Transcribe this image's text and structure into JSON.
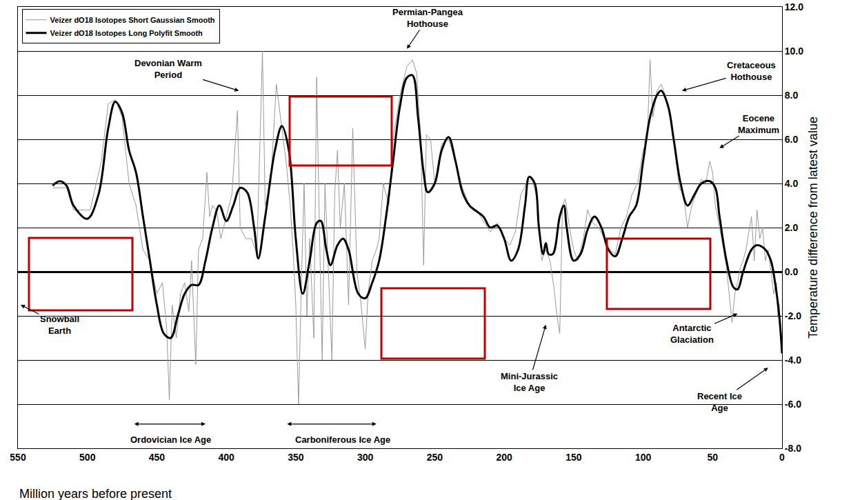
{
  "chart_data": {
    "type": "line",
    "xlabel": "Million years before present",
    "ylabel": "Temperature difference from latest value",
    "xlim": [
      550,
      0
    ],
    "xticks": [
      550,
      500,
      450,
      400,
      350,
      300,
      250,
      200,
      150,
      100,
      50,
      0
    ],
    "ylim": [
      -8,
      12
    ],
    "yticks": [
      {
        "value": -8,
        "label": "-8.0"
      },
      {
        "value": -6,
        "label": "-6.0"
      },
      {
        "value": -4,
        "label": "-4.0"
      },
      {
        "value": -2,
        "label": "-2.0"
      },
      {
        "value": 0,
        "label": "0.0"
      },
      {
        "value": 2,
        "label": "2.0"
      },
      {
        "value": 4,
        "label": "4.0"
      },
      {
        "value": 6,
        "label": "6.0"
      },
      {
        "value": 8,
        "label": "8.0"
      },
      {
        "value": 10,
        "label": "10.0"
      },
      {
        "value": 12,
        "label": "12.0"
      }
    ],
    "grid": true,
    "legend": "upper left",
    "series": [
      {
        "name": "Veizer dO18 Isotopes Short Gaussian Smooth",
        "color": "#999999",
        "line_style": "solid",
        "x": [
          525,
          515,
          510,
          498,
          490,
          485,
          480,
          475,
          470,
          465,
          460,
          455,
          450,
          446,
          443,
          441,
          439,
          436,
          433,
          430,
          427,
          425,
          422,
          420,
          417,
          414,
          412,
          410,
          407,
          404,
          400,
          396,
          392,
          390,
          386,
          382,
          378,
          374,
          372,
          368,
          364,
          362,
          360,
          357,
          354,
          352,
          350,
          348,
          346,
          344,
          342,
          340,
          337,
          335,
          333,
          331,
          329,
          327,
          324,
          322,
          320,
          318,
          315,
          312,
          309,
          306,
          303,
          300,
          298,
          295,
          292,
          290,
          287,
          283,
          280,
          275,
          270,
          266,
          263,
          260,
          258,
          256,
          253,
          250,
          245,
          240,
          235,
          230,
          225,
          220,
          215,
          210,
          205,
          200,
          196,
          192,
          188,
          184,
          180,
          176,
          173,
          170,
          167,
          164,
          162,
          160,
          158,
          156,
          153,
          150,
          147,
          143,
          140,
          136,
          132,
          128,
          124,
          120,
          116,
          112,
          108,
          104,
          100,
          97,
          95,
          93,
          90,
          87,
          84,
          80,
          77,
          74,
          71,
          68,
          65,
          62,
          58,
          55,
          52,
          50,
          48,
          45,
          42,
          40,
          38,
          36,
          34,
          32,
          30,
          28,
          26,
          24,
          22,
          20,
          18,
          16,
          14,
          12,
          10,
          8,
          6,
          4,
          3,
          2,
          1,
          0
        ],
        "values": [
          3.8,
          3.8,
          2.8,
          2.8,
          5.0,
          7.6,
          7.8,
          7.0,
          4.0,
          3.0,
          1.0,
          0.5,
          -1.0,
          -0.5,
          -2.5,
          -5.8,
          -1.5,
          -3.0,
          -1.0,
          -0.5,
          -1.8,
          0.5,
          -4.2,
          1.0,
          1.5,
          4.5,
          2.5,
          3.0,
          2.8,
          1.5,
          2.5,
          3.5,
          7.3,
          2.0,
          1.5,
          1.5,
          0.8,
          10.0,
          3.0,
          4.0,
          8.5,
          7.5,
          6.5,
          5.0,
          3.0,
          1.0,
          -1.5,
          -6.0,
          -0.5,
          4.0,
          -2.0,
          1.5,
          -3.0,
          8.8,
          2.0,
          -4.0,
          4.0,
          1.0,
          -4.0,
          3.5,
          5.5,
          2.0,
          4.0,
          -1.5,
          6.5,
          0.0,
          -1.5,
          -3.5,
          -1.0,
          0.5,
          1.0,
          1.5,
          4.0,
          3.0,
          6.0,
          8.0,
          9.3,
          9.6,
          9.0,
          6.0,
          0.3,
          6.2,
          6.0,
          4.0,
          5.8,
          6.0,
          5.0,
          3.8,
          3.0,
          2.8,
          2.3,
          1.8,
          2.2,
          1.5,
          1.2,
          1.8,
          3.5,
          4.0,
          4.2,
          3.2,
          0.5,
          1.0,
          0.5,
          -0.8,
          -2.0,
          -2.8,
          3.0,
          3.3,
          2.0,
          1.0,
          0.5,
          1.5,
          2.8,
          2.2,
          2.0,
          1.5,
          1.0,
          0.8,
          2.0,
          2.5,
          3.5,
          4.0,
          5.5,
          6.0,
          9.6,
          7.0,
          8.2,
          8.5,
          8.0,
          7.0,
          5.5,
          3.8,
          3.5,
          2.0,
          3.0,
          3.5,
          4.2,
          4.0,
          5.0,
          4.5,
          3.0,
          2.0,
          1.0,
          0.2,
          -1.0,
          -2.3,
          -1.0,
          -0.5,
          0.2,
          0.5,
          1.0,
          1.8,
          2.5,
          0.5,
          2.8,
          1.5,
          2.0,
          0.5,
          1.0,
          0.0,
          -1.0,
          -0.5,
          -2.0,
          -1.5,
          -3.0,
          -3.5
        ]
      },
      {
        "name": "Veizer dO18 Isotopes Long Polyfit Smooth",
        "color": "#000000",
        "line_style": "solid",
        "x": [
          525,
          520,
          515,
          510,
          500,
          492,
          485,
          480,
          475,
          470,
          465,
          460,
          455,
          450,
          445,
          440,
          435,
          430,
          425,
          420,
          415,
          410,
          405,
          400,
          395,
          390,
          385,
          380,
          377,
          372,
          365,
          360,
          355,
          350,
          345,
          340,
          335,
          332,
          328,
          325,
          320,
          316,
          312,
          305,
          300,
          295,
          290,
          285,
          280,
          275,
          270,
          266,
          262,
          258,
          255,
          250,
          245,
          240,
          235,
          230,
          225,
          215,
          210,
          205,
          200,
          195,
          190,
          185,
          182,
          178,
          175,
          172,
          170,
          168,
          165,
          160,
          157,
          155,
          150,
          145,
          140,
          135,
          130,
          125,
          120,
          115,
          110,
          105,
          100,
          95,
          90,
          87,
          82,
          78,
          73,
          68,
          63,
          58,
          52,
          48,
          45,
          40,
          35,
          32,
          28,
          22,
          18,
          12,
          8,
          5,
          2,
          0
        ],
        "values": [
          3.9,
          4.1,
          3.9,
          3.0,
          2.4,
          3.5,
          6.5,
          7.7,
          7.2,
          5.5,
          4.5,
          2.5,
          0.5,
          -1.5,
          -2.8,
          -3.0,
          -2.0,
          -1.0,
          -0.6,
          -0.6,
          0.5,
          2.0,
          3.0,
          2.3,
          3.0,
          3.8,
          3.6,
          2.0,
          0.6,
          2.5,
          5.5,
          6.6,
          5.5,
          1.5,
          -1.0,
          0.5,
          2.2,
          2.3,
          1.0,
          0.3,
          1.2,
          1.5,
          1.0,
          -1.0,
          -1.2,
          -0.5,
          0.5,
          2.5,
          5.0,
          7.5,
          8.8,
          8.9,
          7.0,
          4.5,
          3.6,
          4.0,
          5.5,
          6.1,
          5.0,
          3.6,
          3.0,
          2.5,
          2.0,
          2.1,
          1.5,
          0.5,
          1.0,
          3.0,
          4.3,
          4.0,
          2.0,
          0.8,
          1.3,
          0.8,
          0.8,
          2.5,
          3.0,
          2.0,
          0.5,
          0.8,
          1.9,
          2.5,
          2.0,
          1.0,
          0.7,
          1.5,
          2.5,
          3.0,
          5.0,
          7.0,
          8.0,
          8.2,
          7.5,
          6.0,
          4.0,
          3.0,
          3.5,
          4.0,
          4.1,
          3.8,
          2.5,
          0.5,
          -0.7,
          -0.8,
          0.0,
          1.0,
          1.2,
          1.0,
          0.5,
          -0.5,
          -2.0,
          -3.7
        ]
      }
    ],
    "annotations": [
      {
        "text": "Devonian Warm\nPeriod",
        "x": 391,
        "y": 8.2,
        "text_x": 442,
        "text_y": 9.2
      },
      {
        "text": "Permian-Pangea\nHothouse",
        "x": 270,
        "y": 10.1,
        "text_x": 255,
        "text_y": 11.5
      },
      {
        "text": "Cretaceous\nHothouse",
        "x": 72,
        "y": 8.2,
        "text_x": 22,
        "text_y": 9.1
      },
      {
        "text": "Eocene\nMaximum",
        "x": 45,
        "y": 5.6,
        "text_x": 17,
        "text_y": 6.7
      },
      {
        "text": "Snowball\nEarth",
        "x": 548,
        "y": -1.5,
        "text_x": 520,
        "text_y": -2.4
      },
      {
        "text": "Mini-Jurassic\nIce Age",
        "x": 170,
        "y": -2.4,
        "text_x": 182,
        "text_y": -5.0
      },
      {
        "text": "Antarctic\nGlaciation",
        "x": 32,
        "y": -1.9,
        "text_x": 65,
        "text_y": -2.8
      },
      {
        "text": "Recent Ice\nAge",
        "x": 10,
        "y": -4.35,
        "text_x": 45,
        "text_y": -5.9
      }
    ],
    "ranges": [
      {
        "text": "Ordovician Ice Age",
        "start": 467,
        "end": 415,
        "y": -6.9,
        "text_x": 440,
        "text_y": -7.6
      },
      {
        "text": "Carboniferous Ice Age",
        "start": 357,
        "end": 292,
        "y": -6.9,
        "text_x": 316,
        "text_y": -7.6
      }
    ]
  }
}
